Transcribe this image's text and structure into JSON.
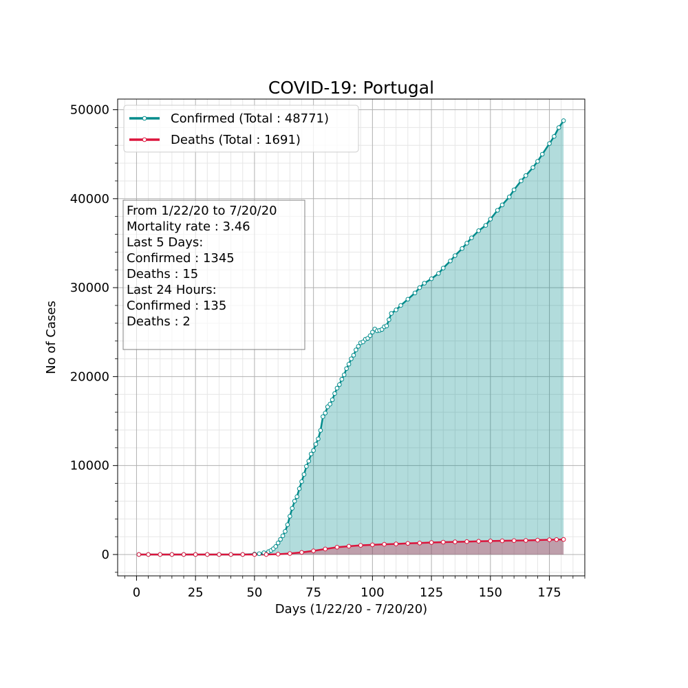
{
  "chart_data": {
    "type": "line",
    "title": "COVID-19: Portugal",
    "xlabel": "Days (1/22/20 - 7/20/20)",
    "ylabel": "No of Cases",
    "xlim": [
      -8,
      190
    ],
    "ylim": [
      -2400,
      51200
    ],
    "x_ticks": [
      0,
      25,
      50,
      75,
      100,
      125,
      150,
      175
    ],
    "y_ticks": [
      0,
      10000,
      20000,
      30000,
      40000,
      50000
    ],
    "grid": true,
    "legend_position": "upper-left",
    "area_fill": true,
    "series": [
      {
        "name": "Confirmed (Total : 48771)",
        "color": "#008b8b",
        "x": [
          1,
          5,
          10,
          15,
          20,
          25,
          30,
          35,
          40,
          45,
          50,
          52,
          54,
          56,
          57,
          58,
          59,
          60,
          61,
          62,
          63,
          64,
          65,
          66,
          67,
          68,
          69,
          70,
          71,
          72,
          73,
          74,
          75,
          76,
          77,
          78,
          79,
          80,
          81,
          82,
          83,
          84,
          85,
          86,
          87,
          88,
          89,
          90,
          91,
          92,
          93,
          94,
          95,
          96,
          97,
          98,
          99,
          100,
          101,
          102,
          103,
          104,
          105,
          106,
          107,
          108,
          110,
          112,
          115,
          118,
          120,
          122,
          125,
          128,
          130,
          133,
          135,
          138,
          140,
          142,
          145,
          148,
          150,
          153,
          155,
          158,
          160,
          163,
          165,
          168,
          170,
          172,
          175,
          177,
          179,
          181
        ],
        "y": [
          0,
          0,
          0,
          0,
          0,
          0,
          0,
          0,
          0,
          0,
          50,
          90,
          200,
          330,
          450,
          650,
          900,
          1300,
          1700,
          2100,
          2600,
          3350,
          4300,
          5200,
          6000,
          6500,
          7400,
          8200,
          9000,
          9900,
          10500,
          11300,
          11700,
          12400,
          13000,
          13950,
          15500,
          15900,
          16600,
          16900,
          17400,
          18100,
          18700,
          19100,
          19700,
          20200,
          20900,
          21400,
          22000,
          22400,
          23000,
          23400,
          23800,
          23900,
          24200,
          24300,
          24600,
          25000,
          25350,
          25150,
          25200,
          25300,
          25600,
          25700,
          26400,
          27100,
          27500,
          28000,
          28700,
          29400,
          30000,
          30500,
          31000,
          31600,
          32200,
          33000,
          33600,
          34400,
          35000,
          35600,
          36400,
          37000,
          37700,
          38700,
          39300,
          40200,
          41000,
          42000,
          42600,
          43500,
          44200,
          45000,
          46200,
          47000,
          48000,
          48771
        ]
      },
      {
        "name": "Deaths (Total : 1691)",
        "color": "#dc143c",
        "x": [
          1,
          5,
          10,
          15,
          20,
          25,
          30,
          35,
          40,
          45,
          50,
          55,
          60,
          65,
          70,
          75,
          80,
          85,
          90,
          95,
          100,
          105,
          110,
          115,
          120,
          125,
          130,
          135,
          140,
          145,
          150,
          155,
          160,
          165,
          170,
          175,
          178,
          181
        ],
        "y": [
          0,
          0,
          0,
          0,
          0,
          0,
          0,
          0,
          0,
          0,
          0,
          2,
          40,
          110,
          240,
          410,
          620,
          820,
          930,
          1030,
          1090,
          1150,
          1190,
          1250,
          1290,
          1350,
          1390,
          1420,
          1450,
          1490,
          1520,
          1540,
          1560,
          1580,
          1620,
          1660,
          1680,
          1691
        ]
      }
    ],
    "annotation_lines": [
      "From 1/22/20 to 7/20/20",
      "Mortality rate : 3.46",
      "Last 5 Days:",
      "Confirmed : 1345",
      "Deaths : 15",
      "Last 24 Hours:",
      "Confirmed : 135",
      "Deaths : 2"
    ]
  }
}
